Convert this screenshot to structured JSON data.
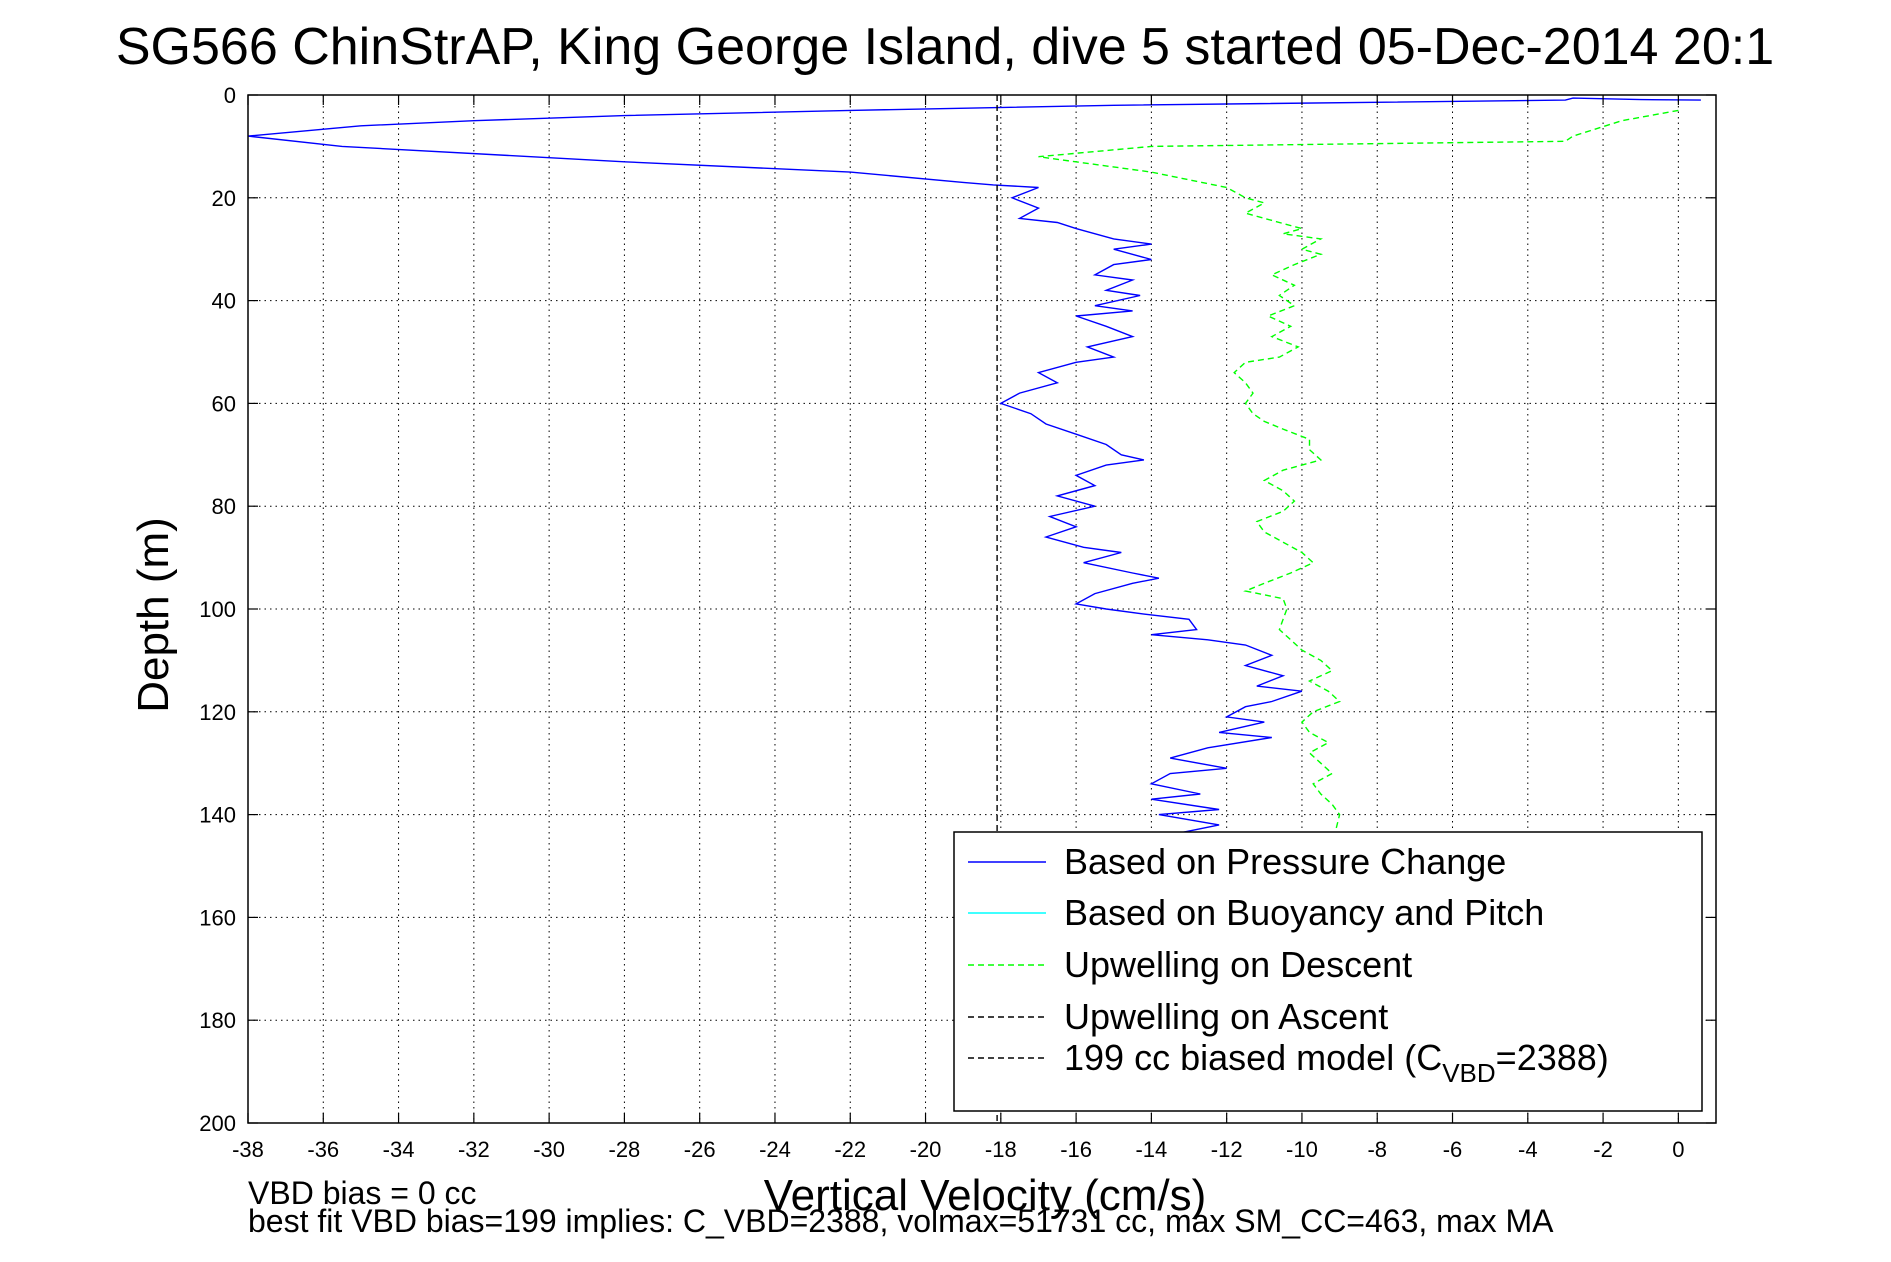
{
  "chart_data": {
    "type": "line",
    "title": "SG566 ChinStrAP, King George Island, dive 5 started 05-Dec-2014 20:1",
    "xlabel": "Vertical Velocity (cm/s)",
    "ylabel": "Depth (m)",
    "xlim": [
      -38,
      1
    ],
    "ylim": [
      0,
      200
    ],
    "y_reversed": true,
    "grid": true,
    "x_ticks": [
      -38,
      -36,
      -34,
      -32,
      -30,
      -28,
      -26,
      -24,
      -22,
      -20,
      -18,
      -16,
      -14,
      -12,
      -10,
      -8,
      -6,
      -4,
      -2,
      0
    ],
    "y_ticks": [
      0,
      20,
      40,
      60,
      80,
      100,
      120,
      140,
      160,
      180,
      200
    ],
    "legend_position": "bottom-right",
    "series": [
      {
        "name": "Based on Pressure Change",
        "color": "#0000ff",
        "style": "solid",
        "points": [
          [
            0.6,
            1
          ],
          [
            -1,
            0.9
          ],
          [
            -2.8,
            0.6
          ],
          [
            -3,
            1
          ],
          [
            -15,
            2
          ],
          [
            -22,
            3
          ],
          [
            -28,
            4
          ],
          [
            -32,
            5
          ],
          [
            -35,
            6
          ],
          [
            -38,
            8
          ],
          [
            -35.5,
            10
          ],
          [
            -28,
            13
          ],
          [
            -22,
            15
          ],
          [
            -19,
            17
          ],
          [
            -18.2,
            17.5
          ],
          [
            -17,
            18
          ],
          [
            -17.7,
            20
          ],
          [
            -17,
            22
          ],
          [
            -17.5,
            24
          ],
          [
            -16.5,
            24.8
          ],
          [
            -16,
            26
          ],
          [
            -15,
            28
          ],
          [
            -14,
            29
          ],
          [
            -15,
            30
          ],
          [
            -14,
            32
          ],
          [
            -15,
            33
          ],
          [
            -15.5,
            35
          ],
          [
            -14.5,
            36
          ],
          [
            -15.2,
            38
          ],
          [
            -14.3,
            39
          ],
          [
            -15.5,
            41
          ],
          [
            -14.5,
            42
          ],
          [
            -16,
            43
          ],
          [
            -15.2,
            45
          ],
          [
            -14.5,
            47
          ],
          [
            -15.7,
            49
          ],
          [
            -15,
            51
          ],
          [
            -16,
            52
          ],
          [
            -17,
            54
          ],
          [
            -16.5,
            56
          ],
          [
            -17.5,
            58
          ],
          [
            -18,
            60
          ],
          [
            -17.2,
            62
          ],
          [
            -16.8,
            64
          ],
          [
            -16,
            66
          ],
          [
            -15.2,
            68
          ],
          [
            -14.8,
            70
          ],
          [
            -14.2,
            71
          ],
          [
            -15.2,
            72
          ],
          [
            -16,
            74
          ],
          [
            -15.5,
            76
          ],
          [
            -16.5,
            78
          ],
          [
            -15.5,
            80
          ],
          [
            -16.7,
            82
          ],
          [
            -16,
            84
          ],
          [
            -16.8,
            86
          ],
          [
            -15.8,
            88
          ],
          [
            -14.8,
            89
          ],
          [
            -15.8,
            91
          ],
          [
            -14.5,
            93
          ],
          [
            -13.8,
            94
          ],
          [
            -14.5,
            95
          ],
          [
            -15.5,
            97
          ],
          [
            -16,
            99
          ],
          [
            -15.2,
            100
          ],
          [
            -14.2,
            101
          ],
          [
            -13,
            102
          ],
          [
            -12.8,
            104
          ],
          [
            -14,
            105
          ],
          [
            -12.5,
            106
          ],
          [
            -11.5,
            107
          ],
          [
            -10.8,
            109
          ],
          [
            -11.5,
            111
          ],
          [
            -10.5,
            113
          ],
          [
            -11.2,
            115
          ],
          [
            -10,
            116
          ],
          [
            -10.8,
            118
          ],
          [
            -11.5,
            119
          ],
          [
            -12,
            121
          ],
          [
            -11,
            122
          ],
          [
            -12.2,
            124
          ],
          [
            -10.8,
            125
          ],
          [
            -12.5,
            127
          ],
          [
            -13.5,
            129
          ],
          [
            -12,
            131
          ],
          [
            -13.5,
            132
          ],
          [
            -14,
            134
          ],
          [
            -12.7,
            136
          ],
          [
            -14,
            137
          ],
          [
            -12.2,
            139
          ],
          [
            -13.8,
            140
          ],
          [
            -12.2,
            142
          ],
          [
            -13.2,
            143.5
          ]
        ]
      },
      {
        "name": "Based on Buoyancy and Pitch",
        "color": "#00ffff",
        "style": "solid",
        "points": []
      },
      {
        "name": "Upwelling on Descent",
        "color": "#00ff00",
        "style": "dashed",
        "points": [
          [
            0,
            3
          ],
          [
            -1.5,
            5
          ],
          [
            -2.8,
            8
          ],
          [
            -3,
            9
          ],
          [
            -14,
            10
          ],
          [
            -17,
            12
          ],
          [
            -16.5,
            12.5
          ],
          [
            -14,
            15
          ],
          [
            -12,
            18
          ],
          [
            -11.5,
            20
          ],
          [
            -11,
            21
          ],
          [
            -11.5,
            23
          ],
          [
            -10.5,
            25
          ],
          [
            -10,
            26
          ],
          [
            -10.5,
            27
          ],
          [
            -9.5,
            28
          ],
          [
            -10,
            30
          ],
          [
            -9.5,
            31
          ],
          [
            -10.2,
            33
          ],
          [
            -10.8,
            35
          ],
          [
            -10.2,
            37
          ],
          [
            -10.6,
            39
          ],
          [
            -10.2,
            41
          ],
          [
            -10.9,
            43
          ],
          [
            -10.3,
            45
          ],
          [
            -10.8,
            47
          ],
          [
            -10.1,
            49
          ],
          [
            -10.6,
            51
          ],
          [
            -11.5,
            52
          ],
          [
            -11.8,
            54
          ],
          [
            -11.5,
            56
          ],
          [
            -11.3,
            58
          ],
          [
            -11.5,
            60
          ],
          [
            -11.3,
            62
          ],
          [
            -11,
            63.5
          ],
          [
            -10.5,
            65
          ],
          [
            -9.8,
            67
          ],
          [
            -9.8,
            69
          ],
          [
            -9.5,
            71
          ],
          [
            -10,
            72
          ],
          [
            -10.5,
            73
          ],
          [
            -11,
            75
          ],
          [
            -10.5,
            77
          ],
          [
            -10.2,
            79
          ],
          [
            -10.5,
            81
          ],
          [
            -11.2,
            83
          ],
          [
            -11,
            85
          ],
          [
            -10.5,
            87
          ],
          [
            -10,
            89
          ],
          [
            -9.7,
            91
          ],
          [
            -10.3,
            93
          ],
          [
            -11,
            95
          ],
          [
            -11.5,
            96.5
          ],
          [
            -10.5,
            98
          ],
          [
            -10.4,
            100
          ],
          [
            -10.5,
            102
          ],
          [
            -10.6,
            104
          ],
          [
            -10.3,
            106
          ],
          [
            -10,
            108
          ],
          [
            -9.5,
            110
          ],
          [
            -9.2,
            112
          ],
          [
            -9.8,
            114
          ],
          [
            -9.3,
            116
          ],
          [
            -9,
            118
          ],
          [
            -9.7,
            120
          ],
          [
            -10,
            122
          ],
          [
            -9.8,
            124
          ],
          [
            -9.3,
            126
          ],
          [
            -9.8,
            128
          ],
          [
            -9.5,
            130
          ],
          [
            -9.2,
            132
          ],
          [
            -9.7,
            134
          ],
          [
            -9.5,
            136
          ],
          [
            -9.2,
            138
          ],
          [
            -9,
            140
          ],
          [
            -9.1,
            143
          ]
        ]
      },
      {
        "name": "Upwelling on Ascent",
        "color": "#000000",
        "style": "dashed",
        "points": []
      },
      {
        "name": "199 cc biased model (C_VBD=2388)",
        "color": "#000000",
        "style": "dashed",
        "points": [
          [
            -18.1,
            0
          ],
          [
            -18.1,
            200
          ]
        ]
      }
    ],
    "legend": {
      "entries": [
        {
          "text": "Based on Pressure Change",
          "color": "#0000ff",
          "style": "solid"
        },
        {
          "text": "Based on Buoyancy and Pitch",
          "color": "#00ffff",
          "style": "solid"
        },
        {
          "text": "Upwelling on Descent",
          "color": "#00ff00",
          "style": "dashed"
        },
        {
          "text": "Upwelling on Ascent",
          "color": "#000000",
          "style": "dashed"
        },
        {
          "text_main": "199 cc biased model (C",
          "text_sub": "VBD",
          "text_tail": "=2388)",
          "color": "#000000",
          "style": "dashed"
        }
      ]
    }
  },
  "notes": {
    "vbd_bias": "VBD bias = 0 cc",
    "best_fit": "best fit VBD bias=199 implies: C_VBD=2388, volmax=51731 cc, max SM_CC=463, max MA"
  }
}
